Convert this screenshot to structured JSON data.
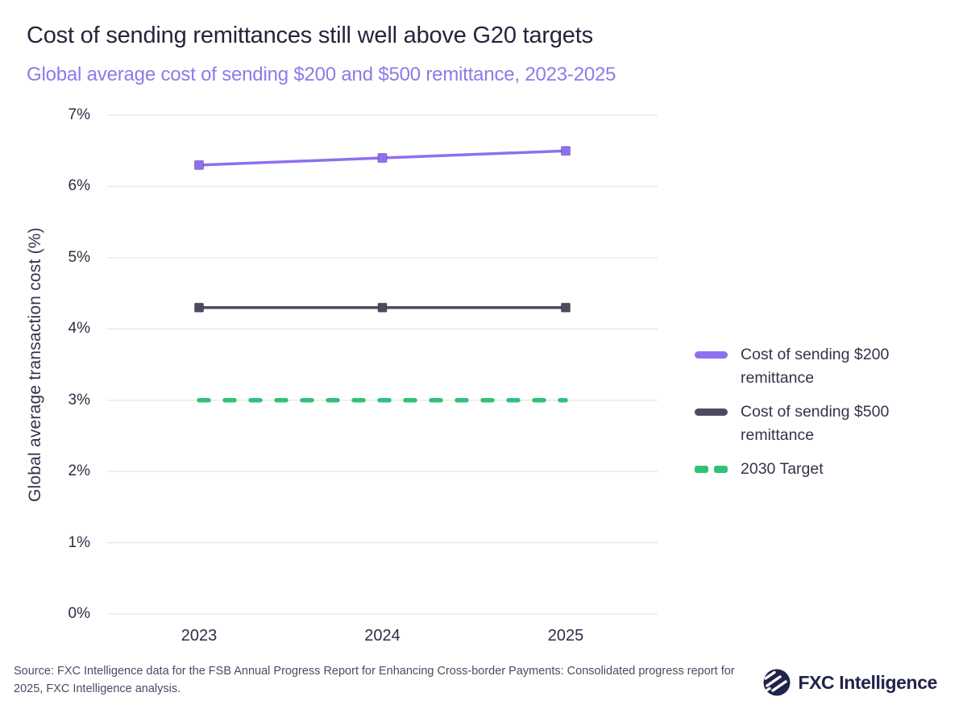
{
  "chart_data": {
    "type": "line",
    "title": "Cost of sending remittances still well above G20 targets",
    "subtitle": "Global average cost of sending $200 and $500 remittance, 2023-2025",
    "categories": [
      "2023",
      "2024",
      "2025"
    ],
    "series": [
      {
        "name": "Cost of sending $200 remittance",
        "values": [
          6.3,
          6.4,
          6.5
        ],
        "color": "#8f6ff0",
        "style": "solid",
        "marker": "square"
      },
      {
        "name": "Cost of sending $500 remittance",
        "values": [
          4.3,
          4.3,
          4.3
        ],
        "color": "#4b4b5e",
        "style": "solid",
        "marker": "square"
      },
      {
        "name": "2030 Target",
        "values": [
          3.0,
          3.0,
          3.0
        ],
        "color": "#2fc277",
        "style": "dashed",
        "marker": "none"
      }
    ],
    "xlabel": "",
    "ylabel": "Global average transaction cost (%)",
    "ylim": [
      0,
      7
    ],
    "y_ticks": [
      "0%",
      "1%",
      "2%",
      "3%",
      "4%",
      "5%",
      "6%",
      "7%"
    ],
    "grid": "horizontal",
    "legend_position": "right"
  },
  "colors": {
    "title": "#24253a",
    "subtitle_accent": "#8c7bea",
    "gridline": "#e6e6ea",
    "axis_text": "#2d2e44",
    "logo_navy": "#22234a"
  },
  "footer": {
    "source": "Source: FXC Intelligence data for the FSB Annual Progress Report for Enhancing Cross-border Payments: Consolidated progress report for 2025, FXC Intelligence analysis.",
    "logo_text": "FXC Intelligence"
  }
}
